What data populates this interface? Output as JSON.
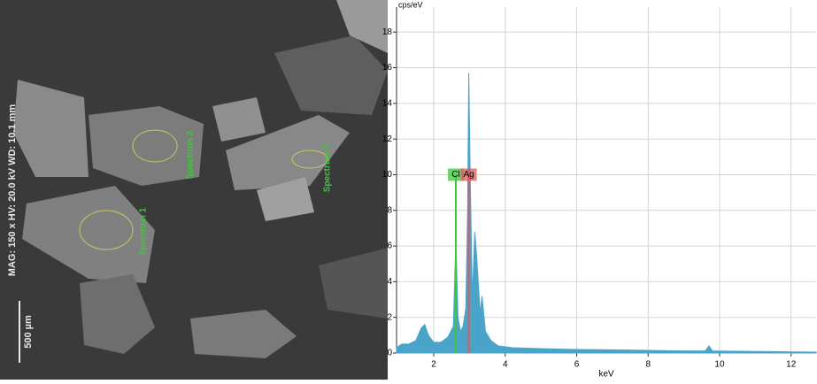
{
  "micrograph": {
    "info": "MAG: 150 x   HV: 20.0 kV   WD: 10.1 mm",
    "scale": "500 µm",
    "spectra": [
      "Spectrum 1",
      "Spectrum 2",
      "Spectrum 3"
    ]
  },
  "chart_data": {
    "type": "area",
    "y_label": "cps/eV",
    "x_label": "keV",
    "color": "#4aa3c8",
    "grid": true,
    "x": [
      0.96,
      1.1,
      1.3,
      1.5,
      1.65,
      1.75,
      1.85,
      2.0,
      2.2,
      2.4,
      2.55,
      2.62,
      2.68,
      2.75,
      2.82,
      2.9,
      2.95,
      2.98,
      3.02,
      3.08,
      3.15,
      3.2,
      3.3,
      3.35,
      3.45,
      3.6,
      3.8,
      4.2,
      5,
      6,
      7,
      8,
      9,
      9.6,
      9.7,
      9.8,
      10.5,
      11.5,
      12.7
    ],
    "values": [
      0.3,
      0.5,
      0.5,
      0.7,
      1.4,
      1.6,
      1.0,
      0.6,
      0.6,
      0.9,
      1.5,
      6.3,
      2.0,
      1.2,
      1.5,
      2.5,
      8,
      15.7,
      10,
      3,
      6.8,
      5.5,
      2.2,
      3.2,
      1.2,
      0.7,
      0.4,
      0.3,
      0.25,
      0.2,
      0.18,
      0.15,
      0.12,
      0.12,
      0.4,
      0.12,
      0.1,
      0.08,
      0.05
    ],
    "xlim": [
      0.96,
      12.7
    ],
    "ylim": [
      0,
      19.4
    ],
    "xticks": [
      2,
      4,
      6,
      8,
      10,
      12
    ],
    "yticks": [
      0,
      2,
      4,
      6,
      8,
      10,
      12,
      14,
      16,
      18
    ],
    "label_y": 10,
    "markers": [
      {
        "name": "Cl",
        "x": 2.62,
        "color": "#3cc83c"
      },
      {
        "name": "Ag",
        "x": 2.98,
        "color": "#e05a5a"
      }
    ]
  }
}
